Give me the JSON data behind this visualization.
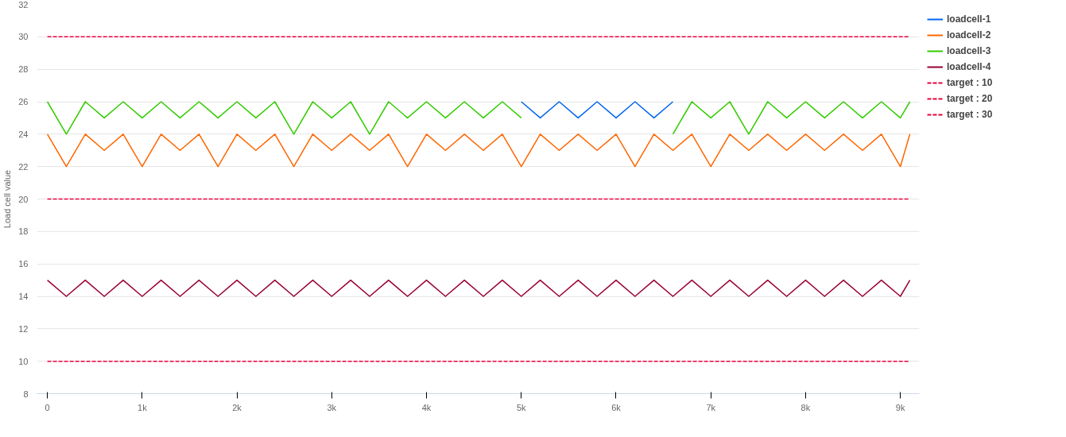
{
  "chart_data": {
    "type": "line",
    "ylabel": "Load cell value",
    "x": [
      0,
      200,
      400,
      600,
      800,
      1000,
      1200,
      1400,
      1600,
      1800,
      2000,
      2200,
      2400,
      2600,
      2800,
      3000,
      3200,
      3400,
      3600,
      3800,
      4000,
      4200,
      4400,
      4600,
      4800,
      5000,
      5200,
      5400,
      5600,
      5800,
      6000,
      6200,
      6400,
      6600,
      6800,
      7000,
      7200,
      7400,
      7600,
      7800,
      8000,
      8200,
      8400,
      8600,
      8800,
      9000,
      9100
    ],
    "xlim": [
      -110,
      9200
    ],
    "xticks": [
      0,
      {
        "value": 1000,
        "label": "1k"
      },
      {
        "value": 2000,
        "label": "2k"
      },
      {
        "value": 3000,
        "label": "3k"
      },
      {
        "value": 4000,
        "label": "4k"
      },
      {
        "value": 5000,
        "label": "5k"
      },
      {
        "value": 6000,
        "label": "6k"
      },
      {
        "value": 7000,
        "label": "7k"
      },
      {
        "value": 8000,
        "label": "8k"
      },
      {
        "value": 9000,
        "label": "9k"
      }
    ],
    "ylim": [
      8,
      32
    ],
    "yticks": [
      8,
      10,
      12,
      14,
      16,
      18,
      20,
      22,
      24,
      26,
      28,
      30,
      32
    ],
    "grid": "y",
    "legend": "right",
    "series": [
      {
        "name": "loadcell-1",
        "color": "#0066ee",
        "x": [
          5000,
          5200,
          5400,
          5600,
          5800,
          6000,
          6200,
          6400,
          6600
        ],
        "values": [
          26,
          25,
          26,
          25,
          26,
          25,
          26,
          25,
          26
        ]
      },
      {
        "name": "loadcell-2",
        "color": "#ff6600",
        "values": [
          24,
          22,
          24,
          23,
          24,
          22,
          24,
          23,
          24,
          22,
          24,
          23,
          24,
          22,
          24,
          23,
          24,
          23,
          24,
          22,
          24,
          23,
          24,
          23,
          24,
          22,
          24,
          23,
          24,
          23,
          24,
          22,
          24,
          23,
          24,
          22,
          24,
          23,
          24,
          23,
          24,
          23,
          24,
          23,
          24,
          22,
          24
        ]
      },
      {
        "name": "loadcell-3",
        "color": "#33cc00",
        "values": [
          26,
          24,
          26,
          25,
          26,
          25,
          26,
          25,
          26,
          25,
          26,
          25,
          26,
          24,
          26,
          25,
          26,
          24,
          26,
          25,
          26,
          25,
          26,
          25,
          26,
          25,
          null,
          null,
          null,
          null,
          null,
          null,
          null,
          24,
          26,
          25,
          26,
          24,
          26,
          25,
          26,
          25,
          26,
          25,
          26,
          25,
          26
        ]
      },
      {
        "name": "loadcell-4",
        "color": "#990033",
        "values": [
          15,
          14,
          15,
          14,
          15,
          14,
          15,
          14,
          15,
          14,
          15,
          14,
          15,
          14,
          15,
          14,
          15,
          14,
          15,
          14,
          15,
          14,
          15,
          14,
          15,
          14,
          15,
          14,
          15,
          14,
          15,
          14,
          15,
          14,
          15,
          14,
          15,
          14,
          15,
          14,
          15,
          14,
          15,
          14,
          15,
          14,
          15
        ]
      },
      {
        "name": "target : 10",
        "color": "#e8003d",
        "line_style": "dashed",
        "x": [
          0,
          9100
        ],
        "values": [
          10,
          10
        ]
      },
      {
        "name": "target : 20",
        "color": "#e8003d",
        "line_style": "dashed",
        "x": [
          0,
          9100
        ],
        "values": [
          20,
          20
        ]
      },
      {
        "name": "target : 30",
        "color": "#e8003d",
        "line_style": "dashed",
        "x": [
          0,
          9100
        ],
        "values": [
          30,
          30
        ]
      }
    ]
  }
}
